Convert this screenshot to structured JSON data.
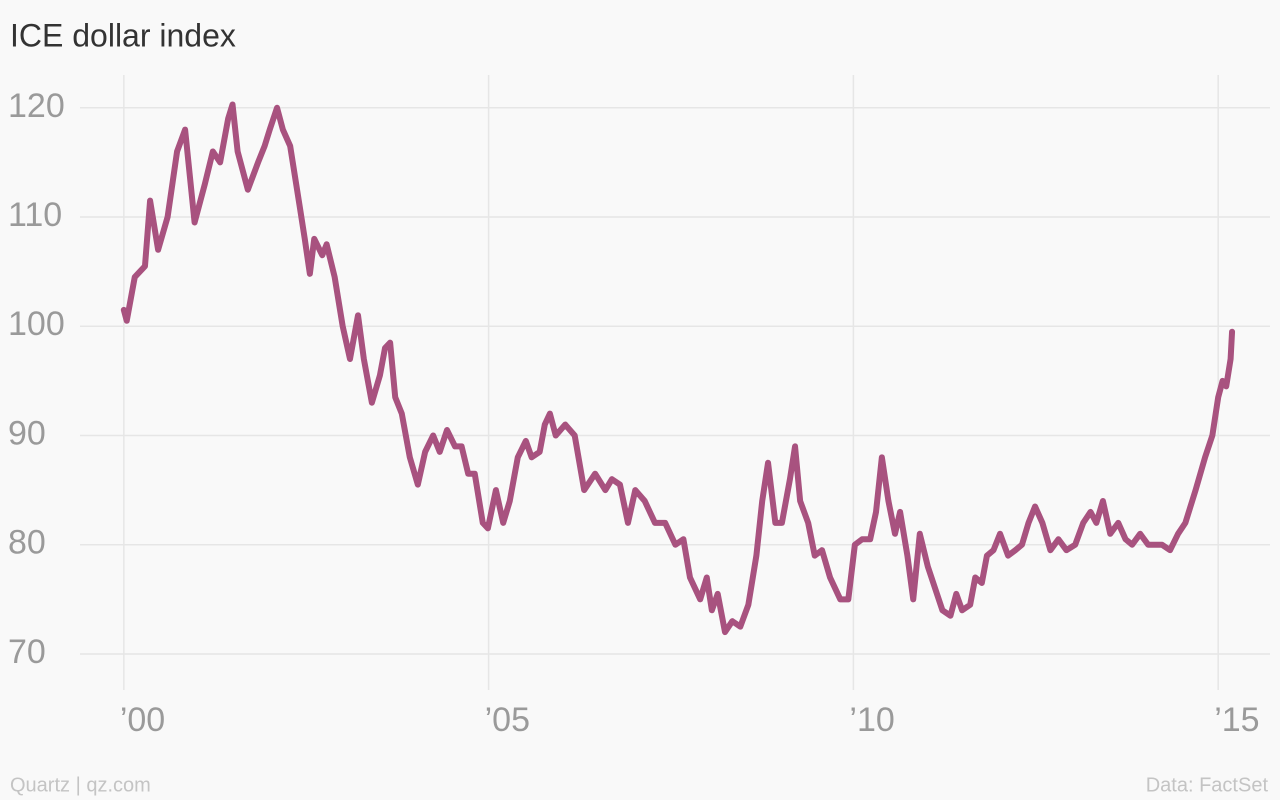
{
  "chart_data": {
    "type": "line",
    "title": "ICE dollar index",
    "credit": "Quartz | qz.com",
    "source": "Data: FactSet",
    "xlim": [
      1998.44,
      2015.71
    ],
    "ylim": [
      66.7,
      123
    ],
    "xticks": [
      {
        "value": 2000,
        "label": "’00"
      },
      {
        "value": 2005,
        "label": "’05"
      },
      {
        "value": 2010,
        "label": "’10"
      },
      {
        "value": 2015,
        "label": "’15"
      }
    ],
    "yticks": [
      70,
      80,
      90,
      100,
      110,
      120
    ],
    "grid": true,
    "x": [
      2000.0,
      2000.04,
      2000.15,
      2000.29,
      2000.36,
      2000.47,
      2000.6,
      2000.73,
      2000.84,
      2000.97,
      2001.11,
      2001.22,
      2001.32,
      2001.43,
      2001.49,
      2001.56,
      2001.7,
      2001.84,
      2001.93,
      2002.0,
      2002.1,
      2002.18,
      2002.28,
      2002.41,
      2002.48,
      2002.55,
      2002.61,
      2002.72,
      2002.78,
      2002.89,
      2003.0,
      2003.1,
      2003.21,
      2003.29,
      2003.4,
      2003.51,
      2003.58,
      2003.65,
      2003.72,
      2003.81,
      2003.92,
      2004.03,
      2004.13,
      2004.24,
      2004.33,
      2004.43,
      2004.54,
      2004.63,
      2004.72,
      2004.81,
      2004.92,
      2004.99,
      2005.1,
      2005.2,
      2005.29,
      2005.4,
      2005.51,
      2005.59,
      2005.7,
      2005.77,
      2005.84,
      2005.92,
      2006.05,
      2006.18,
      2006.31,
      2006.46,
      2006.6,
      2006.69,
      2006.8,
      2006.91,
      2007.01,
      2007.14,
      2007.28,
      2007.42,
      2007.56,
      2007.67,
      2007.76,
      2007.9,
      2007.99,
      2008.06,
      2008.14,
      2008.24,
      2008.34,
      2008.45,
      2008.56,
      2008.67,
      2008.75,
      2008.83,
      2008.93,
      2009.02,
      2009.13,
      2009.2,
      2009.27,
      2009.38,
      2009.47,
      2009.57,
      2009.68,
      2009.82,
      2009.93,
      2010.02,
      2010.12,
      2010.23,
      2010.31,
      2010.39,
      2010.48,
      2010.57,
      2010.64,
      2010.74,
      2010.82,
      2010.91,
      2011.02,
      2011.12,
      2011.22,
      2011.33,
      2011.41,
      2011.49,
      2011.6,
      2011.67,
      2011.76,
      2011.83,
      2011.92,
      2012.01,
      2012.12,
      2012.22,
      2012.31,
      2012.4,
      2012.49,
      2012.59,
      2012.7,
      2012.81,
      2012.92,
      2013.04,
      2013.15,
      2013.25,
      2013.33,
      2013.42,
      2013.52,
      2013.63,
      2013.73,
      2013.82,
      2013.93,
      2014.04,
      2014.14,
      2014.23,
      2014.34,
      2014.45,
      2014.55,
      2014.69,
      2014.82,
      2014.92,
      2015.0,
      2015.06,
      2015.11,
      2015.17,
      2015.19
    ],
    "series": [
      {
        "name": "ICE dollar index",
        "color": "#a8527f",
        "values": [
          101.5,
          100.5,
          104.5,
          105.5,
          111.5,
          107,
          110,
          116,
          118,
          109.5,
          113,
          116,
          115,
          119,
          120.3,
          116,
          112.5,
          115,
          116.5,
          118,
          120,
          118,
          116.5,
          111,
          108,
          104.8,
          108,
          106.5,
          107.5,
          104.5,
          100,
          97,
          101,
          97,
          93,
          95.5,
          98,
          98.5,
          93.5,
          92,
          88,
          85.5,
          88.5,
          90,
          88.5,
          90.5,
          89,
          89,
          86.5,
          86.5,
          82,
          81.5,
          85,
          82,
          84,
          88,
          89.5,
          88,
          88.5,
          91,
          92,
          90,
          91,
          90,
          85,
          86.5,
          85,
          86,
          85.5,
          82,
          85,
          84,
          82,
          82,
          80,
          80.5,
          77,
          75,
          77,
          74,
          75.5,
          72,
          73,
          72.5,
          74.5,
          79,
          84,
          87.5,
          82,
          82,
          86,
          89,
          84,
          82,
          79,
          79.5,
          77,
          75,
          75,
          80,
          80.5,
          80.5,
          83,
          88,
          84,
          81,
          83,
          79,
          75,
          81,
          78,
          76,
          74,
          73.5,
          75.5,
          74,
          74.5,
          77,
          76.5,
          79,
          79.5,
          81,
          79,
          79.5,
          80,
          82,
          83.5,
          82,
          79.5,
          80.5,
          79.5,
          80,
          82,
          83,
          82,
          84,
          81,
          82,
          80.5,
          80,
          81,
          80,
          80,
          80,
          79.5,
          81,
          82,
          85,
          88,
          90,
          93.5,
          95,
          94.5,
          97,
          99.5
        ]
      }
    ]
  }
}
